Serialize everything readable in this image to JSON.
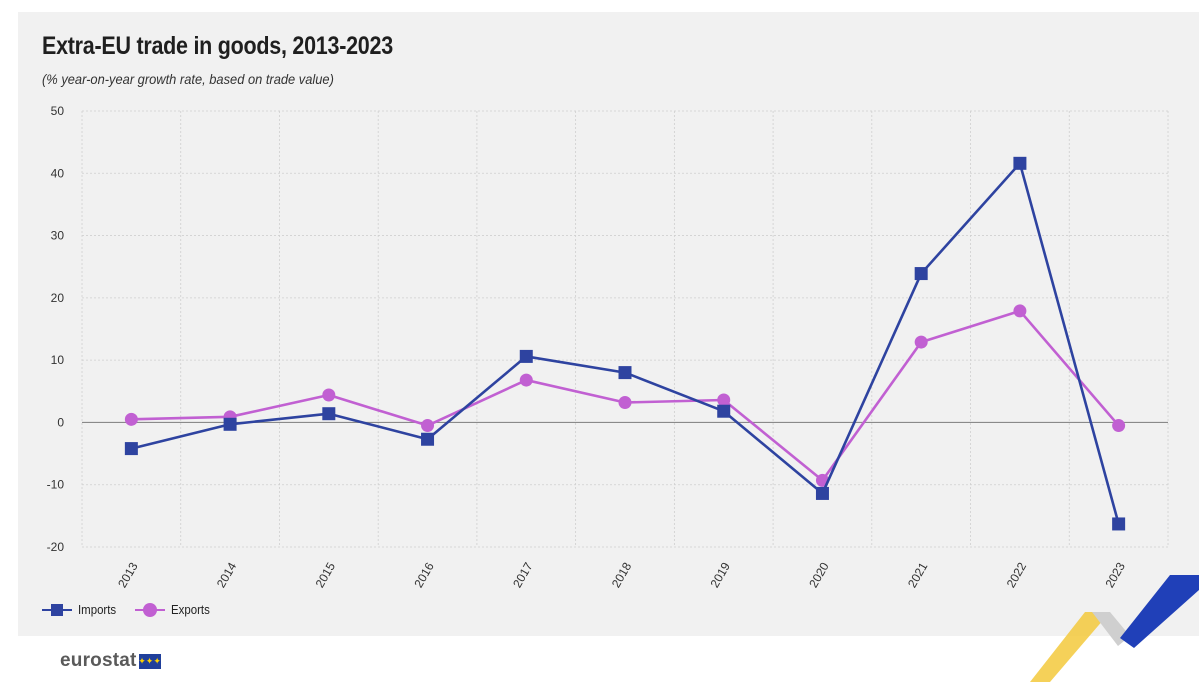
{
  "header": {
    "title": "Extra-EU trade in goods, 2013-2023",
    "subtitle": "(% year-on-year growth rate, based on trade value)"
  },
  "legend": {
    "imports_label": "Imports",
    "exports_label": "Exports"
  },
  "footer": {
    "logo_text": "eurostat"
  },
  "colors": {
    "imports": "#2e43a0",
    "exports": "#c160d2",
    "grid": "#cfcfcf",
    "axis": "#8a8a8a",
    "background": "#f1f1f1"
  },
  "chart_data": {
    "type": "line",
    "title": "Extra-EU trade in goods, 2013-2023",
    "subtitle": "(% year-on-year growth rate, based on trade value)",
    "categories": [
      "2013",
      "2014",
      "2015",
      "2016",
      "2017",
      "2018",
      "2019",
      "2020",
      "2021",
      "2022",
      "2023"
    ],
    "series": [
      {
        "name": "Imports",
        "marker": "square",
        "values": [
          -4.2,
          -0.3,
          1.4,
          -2.7,
          10.6,
          8.0,
          1.8,
          -11.4,
          23.9,
          41.6,
          -16.3
        ]
      },
      {
        "name": "Exports",
        "marker": "circle",
        "values": [
          0.5,
          0.9,
          4.4,
          -0.5,
          6.8,
          3.2,
          3.6,
          -9.3,
          12.9,
          17.9,
          -0.5
        ]
      }
    ],
    "yticks": [
      "50",
      "40",
      "30",
      "20",
      "10",
      "0",
      "-10",
      "-20"
    ],
    "ylim": [
      -20,
      50
    ],
    "xlabel": "",
    "ylabel": "",
    "grid": true,
    "legend_position": "bottom-left"
  }
}
